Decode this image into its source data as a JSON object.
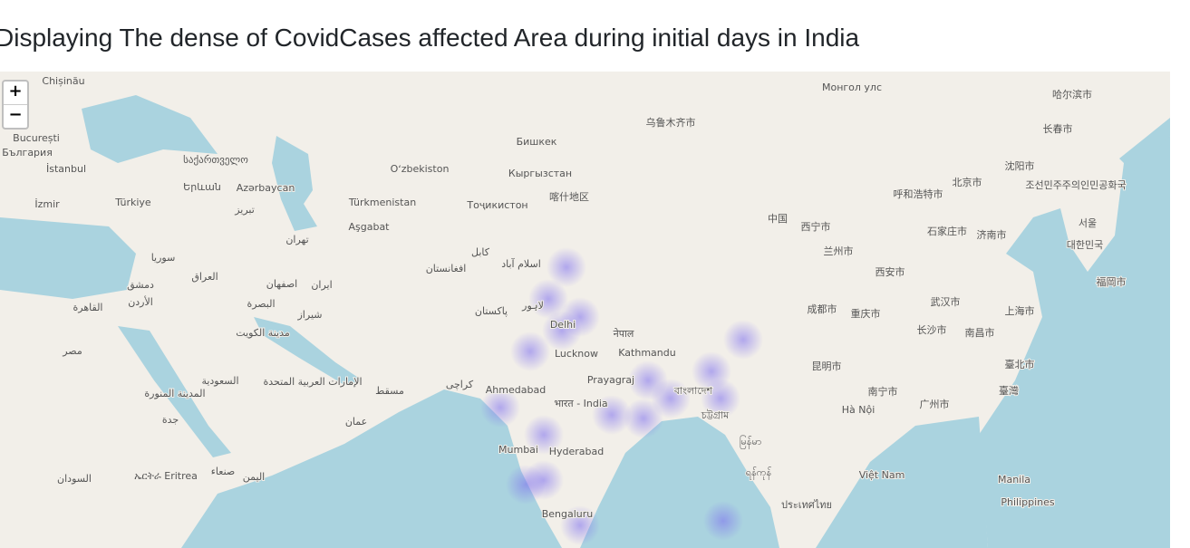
{
  "header": {
    "title": "Displaying The dense of CovidCases affected Area during initial days in India"
  },
  "zoom": {
    "in": "+",
    "out": "−"
  },
  "labels": [
    "Chișinău",
    "București",
    "България",
    "İstanbul",
    "İzmir",
    "Türkiye",
    "Azərbaycan",
    "Երևան",
    "საქართველო",
    "تبریز",
    "Oʻzbekiston",
    "Türkmenistan",
    "Aşgabat",
    "Кыргызстан",
    "Бишкек",
    "Тоҷикистон",
    "喀什地区",
    "乌鲁木齐市",
    "Монгол улс",
    "تهران",
    "سوريا",
    "العراق",
    "دمشق",
    "الأردن",
    "القاهرة",
    "مصر",
    "اصفهان",
    "ایران",
    "البصرة",
    "شیراز",
    "مدينة الكويت",
    "افغانستان",
    "کابل",
    "اسلام آباد",
    "پاکستان",
    "لاہور",
    "Delhi",
    "Lucknow",
    "नेपाल",
    "Kathmandu",
    "Prayagraj",
    "Ahmedabad",
    "भारत - India",
    "বাংলাদেশ",
    "চট্টগ্রাম",
    "Mumbai",
    "Hyderabad",
    "Bengaluru",
    "မြန်မာ",
    "中国",
    "西宁市",
    "兰州市",
    "成都市",
    "重庆市",
    "西安市",
    "北京市",
    "呼和浩特市",
    "石家庄市",
    "济南市",
    "上海市",
    "武汉市",
    "长沙市",
    "南昌市",
    "广州市",
    "南宁市",
    "昆明市",
    "Hà Nội",
    "Việt Nam",
    "ประเทศไทย",
    "ရန်ကုန်",
    "臺灣",
    "臺北市",
    "서울",
    "대한민국",
    "조선민주주의인민공화국",
    "哈尔滨市",
    "长春市",
    "沈阳市",
    "福岡市",
    "Manila",
    "Philippines",
    "السعودية",
    "المدينة المنورة",
    "جدة",
    "الإمارات العربية المتحدة",
    "مسقط",
    "عمان",
    "كراچی",
    "السودان",
    "ኤርትራ Eritrea",
    "صنعاء",
    "اليمن"
  ]
}
